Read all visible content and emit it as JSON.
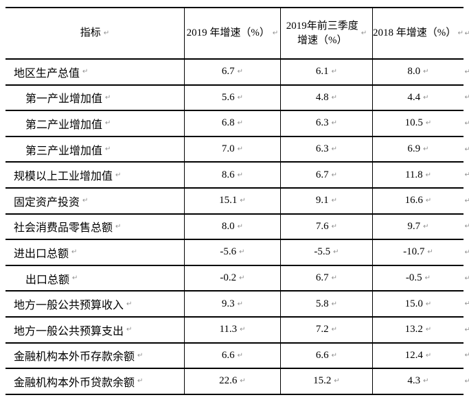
{
  "document": {
    "background_color": "#ffffff",
    "border_color": "#000000",
    "text_color": "#000000",
    "mark_color": "#8f8f8f"
  },
  "marks": {
    "cell_end": "↵",
    "row_end": "↵"
  },
  "table": {
    "columns": [
      {
        "text": "指标"
      },
      {
        "text": "2019 年增速（%）"
      },
      {
        "text": "2019年前三季度\n增速（%）"
      },
      {
        "text": "2018 年增速（%）"
      }
    ],
    "rows": [
      {
        "indicator": "地区生产总值",
        "indent": false,
        "growth_2019": "6.7",
        "growth_2019_q1_q3": "6.1",
        "growth_2018": "8.0"
      },
      {
        "indicator": "第一产业增加值",
        "indent": true,
        "growth_2019": "5.6",
        "growth_2019_q1_q3": "4.8",
        "growth_2018": "4.4"
      },
      {
        "indicator": "第二产业增加值",
        "indent": true,
        "growth_2019": "6.8",
        "growth_2019_q1_q3": "6.3",
        "growth_2018": "10.5"
      },
      {
        "indicator": "第三产业增加值",
        "indent": true,
        "growth_2019": "7.0",
        "growth_2019_q1_q3": "6.3",
        "growth_2018": "6.9"
      },
      {
        "indicator": "规模以上工业增加值",
        "indent": false,
        "growth_2019": "8.6",
        "growth_2019_q1_q3": "6.7",
        "growth_2018": "11.8"
      },
      {
        "indicator": "固定资产投资",
        "indent": false,
        "growth_2019": "15.1",
        "growth_2019_q1_q3": "9.1",
        "growth_2018": "16.6"
      },
      {
        "indicator": "社会消费品零售总额",
        "indent": false,
        "growth_2019": "8.0",
        "growth_2019_q1_q3": "7.6",
        "growth_2018": "9.7"
      },
      {
        "indicator": "进出口总额",
        "indent": false,
        "growth_2019": "-5.6",
        "growth_2019_q1_q3": "-5.5",
        "growth_2018": "-10.7"
      },
      {
        "indicator": "出口总额",
        "indent": true,
        "growth_2019": "-0.2",
        "growth_2019_q1_q3": "6.7",
        "growth_2018": "-0.5"
      },
      {
        "indicator": "地方一般公共预算收入",
        "indent": false,
        "growth_2019": "9.3",
        "growth_2019_q1_q3": "5.8",
        "growth_2018": "15.0"
      },
      {
        "indicator": "地方一般公共预算支出",
        "indent": false,
        "growth_2019": "11.3",
        "growth_2019_q1_q3": "7.2",
        "growth_2018": "13.2"
      },
      {
        "indicator": "金融机构本外币存款余额",
        "indent": false,
        "growth_2019": "6.6",
        "growth_2019_q1_q3": "6.6",
        "growth_2018": "12.4"
      },
      {
        "indicator": "金融机构本外币贷款余额",
        "indent": false,
        "growth_2019": "22.6",
        "growth_2019_q1_q3": "15.2",
        "growth_2018": "4.3"
      }
    ]
  }
}
